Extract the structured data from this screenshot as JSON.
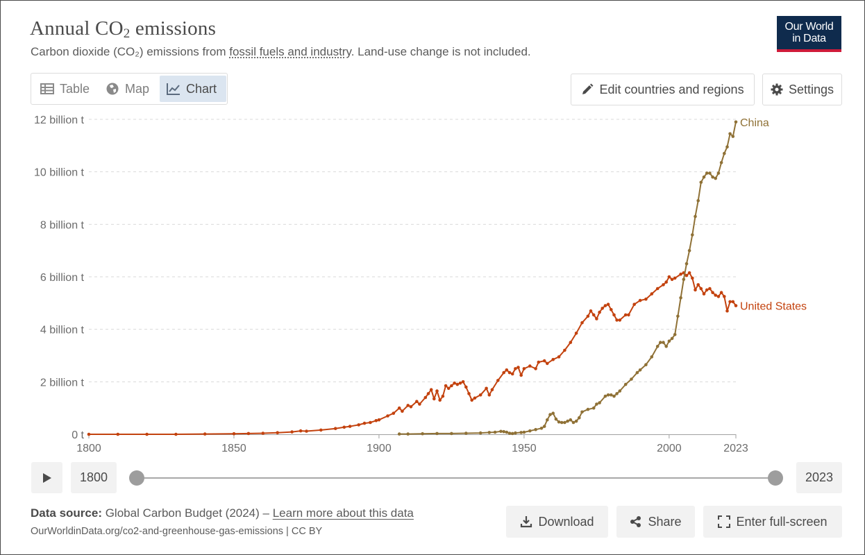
{
  "header": {
    "title_main": "Annual CO",
    "title_sub": "2",
    "title_tail": " emissions",
    "subtitle_pre": "Carbon dioxide (CO₂) emissions from ",
    "subtitle_link": "fossil fuels and industry",
    "subtitle_post": ". Land-use change is not included."
  },
  "logo": {
    "line1": "Our World",
    "line2": "in Data",
    "accent": "#cf1b3a",
    "background": "#0f2b4d"
  },
  "tabs": [
    {
      "label": "Table",
      "icon": "table-icon",
      "active": false
    },
    {
      "label": "Map",
      "icon": "globe-icon",
      "active": false
    },
    {
      "label": "Chart",
      "icon": "line-chart-icon",
      "active": true
    }
  ],
  "toolbar": {
    "edit_label": "Edit countries and regions",
    "settings_label": "Settings"
  },
  "timeline": {
    "play_icon": "play-icon",
    "start_year": "1800",
    "end_year": "2023"
  },
  "footer": {
    "source_label": "Data source:",
    "source_text": " Global Carbon Budget (2024) – ",
    "learn_more": "Learn more about this data",
    "url_line": "OurWorldinData.org/co2-and-greenhouse-gas-emissions | CC BY"
  },
  "actions": {
    "download_label": "Download",
    "share_label": "Share",
    "fullscreen_label": "Enter full-screen"
  },
  "chart_data": {
    "type": "line",
    "title": "Annual CO₂ emissions",
    "xlabel": "",
    "ylabel": "",
    "xlim": [
      1800,
      2023
    ],
    "ylim": [
      0,
      12
    ],
    "y_unit": "billion t",
    "y_ticks": [
      {
        "value": 0,
        "label": "0 t"
      },
      {
        "value": 2,
        "label": "2 billion t"
      },
      {
        "value": 4,
        "label": "4 billion t"
      },
      {
        "value": 6,
        "label": "6 billion t"
      },
      {
        "value": 8,
        "label": "8 billion t"
      },
      {
        "value": 10,
        "label": "10 billion t"
      },
      {
        "value": 12,
        "label": "12 billion t"
      }
    ],
    "x_ticks": [
      "1800",
      "1850",
      "1900",
      "1950",
      "2000",
      "2023"
    ],
    "grid": "horizontal-dashed",
    "legend": "labels-at-line-end",
    "series": [
      {
        "name": "United States",
        "color": "#c3420e",
        "points": [
          [
            1800,
            0.0
          ],
          [
            1810,
            0.0
          ],
          [
            1820,
            0.0
          ],
          [
            1830,
            0.0
          ],
          [
            1840,
            0.01
          ],
          [
            1850,
            0.02
          ],
          [
            1855,
            0.03
          ],
          [
            1860,
            0.04
          ],
          [
            1865,
            0.06
          ],
          [
            1870,
            0.09
          ],
          [
            1873,
            0.13
          ],
          [
            1875,
            0.12
          ],
          [
            1880,
            0.16
          ],
          [
            1885,
            0.22
          ],
          [
            1888,
            0.27
          ],
          [
            1890,
            0.3
          ],
          [
            1893,
            0.36
          ],
          [
            1895,
            0.42
          ],
          [
            1897,
            0.45
          ],
          [
            1899,
            0.52
          ],
          [
            1900,
            0.55
          ],
          [
            1903,
            0.7
          ],
          [
            1905,
            0.8
          ],
          [
            1907,
            1.0
          ],
          [
            1908,
            0.88
          ],
          [
            1910,
            1.1
          ],
          [
            1911,
            1.05
          ],
          [
            1913,
            1.25
          ],
          [
            1914,
            1.15
          ],
          [
            1916,
            1.4
          ],
          [
            1917,
            1.55
          ],
          [
            1918,
            1.7
          ],
          [
            1919,
            1.35
          ],
          [
            1920,
            1.65
          ],
          [
            1921,
            1.3
          ],
          [
            1922,
            1.45
          ],
          [
            1923,
            1.85
          ],
          [
            1924,
            1.75
          ],
          [
            1925,
            1.85
          ],
          [
            1926,
            1.95
          ],
          [
            1927,
            1.9
          ],
          [
            1928,
            1.95
          ],
          [
            1929,
            2.0
          ],
          [
            1930,
            1.8
          ],
          [
            1931,
            1.55
          ],
          [
            1932,
            1.3
          ],
          [
            1933,
            1.38
          ],
          [
            1935,
            1.5
          ],
          [
            1937,
            1.75
          ],
          [
            1938,
            1.5
          ],
          [
            1939,
            1.7
          ],
          [
            1941,
            2.05
          ],
          [
            1943,
            2.35
          ],
          [
            1944,
            2.45
          ],
          [
            1945,
            2.35
          ],
          [
            1946,
            2.3
          ],
          [
            1947,
            2.5
          ],
          [
            1948,
            2.55
          ],
          [
            1949,
            2.25
          ],
          [
            1950,
            2.5
          ],
          [
            1952,
            2.6
          ],
          [
            1954,
            2.5
          ],
          [
            1955,
            2.75
          ],
          [
            1957,
            2.8
          ],
          [
            1958,
            2.7
          ],
          [
            1960,
            2.85
          ],
          [
            1962,
            2.95
          ],
          [
            1964,
            3.2
          ],
          [
            1966,
            3.5
          ],
          [
            1968,
            3.85
          ],
          [
            1970,
            4.25
          ],
          [
            1972,
            4.5
          ],
          [
            1973,
            4.7
          ],
          [
            1974,
            4.55
          ],
          [
            1975,
            4.4
          ],
          [
            1976,
            4.65
          ],
          [
            1977,
            4.8
          ],
          [
            1978,
            4.9
          ],
          [
            1979,
            4.95
          ],
          [
            1980,
            4.75
          ],
          [
            1981,
            4.55
          ],
          [
            1982,
            4.35
          ],
          [
            1983,
            4.35
          ],
          [
            1985,
            4.55
          ],
          [
            1986,
            4.55
          ],
          [
            1988,
            4.95
          ],
          [
            1990,
            5.1
          ],
          [
            1992,
            5.15
          ],
          [
            1994,
            5.35
          ],
          [
            1996,
            5.55
          ],
          [
            1998,
            5.7
          ],
          [
            1999,
            5.8
          ],
          [
            2000,
            6.0
          ],
          [
            2001,
            5.9
          ],
          [
            2002,
            5.95
          ],
          [
            2004,
            6.1
          ],
          [
            2005,
            6.15
          ],
          [
            2006,
            6.05
          ],
          [
            2007,
            6.15
          ],
          [
            2008,
            5.95
          ],
          [
            2009,
            5.5
          ],
          [
            2010,
            5.7
          ],
          [
            2011,
            5.55
          ],
          [
            2012,
            5.35
          ],
          [
            2013,
            5.5
          ],
          [
            2014,
            5.55
          ],
          [
            2015,
            5.4
          ],
          [
            2016,
            5.3
          ],
          [
            2017,
            5.25
          ],
          [
            2018,
            5.4
          ],
          [
            2019,
            5.25
          ],
          [
            2020,
            4.7
          ],
          [
            2021,
            5.05
          ],
          [
            2022,
            5.05
          ],
          [
            2023,
            4.9
          ]
        ]
      },
      {
        "name": "China",
        "color": "#8f7136",
        "points": [
          [
            1907,
            0.01
          ],
          [
            1910,
            0.01
          ],
          [
            1915,
            0.02
          ],
          [
            1920,
            0.03
          ],
          [
            1925,
            0.03
          ],
          [
            1930,
            0.04
          ],
          [
            1935,
            0.05
          ],
          [
            1938,
            0.07
          ],
          [
            1940,
            0.08
          ],
          [
            1942,
            0.11
          ],
          [
            1943,
            0.1
          ],
          [
            1944,
            0.08
          ],
          [
            1945,
            0.04
          ],
          [
            1946,
            0.03
          ],
          [
            1947,
            0.05
          ],
          [
            1949,
            0.07
          ],
          [
            1950,
            0.08
          ],
          [
            1952,
            0.13
          ],
          [
            1954,
            0.18
          ],
          [
            1956,
            0.23
          ],
          [
            1957,
            0.3
          ],
          [
            1958,
            0.55
          ],
          [
            1959,
            0.75
          ],
          [
            1960,
            0.8
          ],
          [
            1961,
            0.58
          ],
          [
            1962,
            0.47
          ],
          [
            1963,
            0.45
          ],
          [
            1964,
            0.45
          ],
          [
            1965,
            0.5
          ],
          [
            1966,
            0.55
          ],
          [
            1967,
            0.45
          ],
          [
            1968,
            0.5
          ],
          [
            1969,
            0.63
          ],
          [
            1970,
            0.85
          ],
          [
            1972,
            0.95
          ],
          [
            1974,
            1.0
          ],
          [
            1975,
            1.15
          ],
          [
            1976,
            1.2
          ],
          [
            1978,
            1.45
          ],
          [
            1979,
            1.5
          ],
          [
            1980,
            1.5
          ],
          [
            1981,
            1.45
          ],
          [
            1982,
            1.55
          ],
          [
            1983,
            1.65
          ],
          [
            1985,
            1.9
          ],
          [
            1987,
            2.1
          ],
          [
            1989,
            2.35
          ],
          [
            1990,
            2.45
          ],
          [
            1992,
            2.65
          ],
          [
            1994,
            2.95
          ],
          [
            1996,
            3.35
          ],
          [
            1997,
            3.5
          ],
          [
            1998,
            3.5
          ],
          [
            1999,
            3.35
          ],
          [
            2000,
            3.55
          ],
          [
            2001,
            3.65
          ],
          [
            2002,
            3.8
          ],
          [
            2003,
            4.5
          ],
          [
            2004,
            5.2
          ],
          [
            2005,
            5.9
          ],
          [
            2006,
            6.5
          ],
          [
            2007,
            7.0
          ],
          [
            2008,
            7.6
          ],
          [
            2009,
            8.3
          ],
          [
            2010,
            8.9
          ],
          [
            2011,
            9.6
          ],
          [
            2012,
            9.8
          ],
          [
            2013,
            9.95
          ],
          [
            2014,
            9.95
          ],
          [
            2015,
            9.8
          ],
          [
            2016,
            9.75
          ],
          [
            2017,
            9.95
          ],
          [
            2018,
            10.35
          ],
          [
            2019,
            10.7
          ],
          [
            2020,
            10.95
          ],
          [
            2021,
            11.45
          ],
          [
            2022,
            11.35
          ],
          [
            2023,
            11.9
          ]
        ]
      }
    ]
  }
}
